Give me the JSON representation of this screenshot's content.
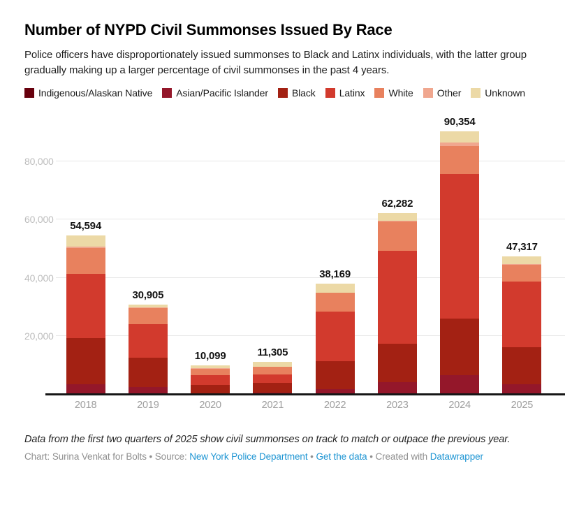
{
  "header": {
    "title": "Number of NYPD Civil Summonses Issued By Race",
    "subtitle": "Police officers have disproportionately issued summonses to Black and Latinx individuals, with the latter group gradually making up a larger percentage of civil summonses in the past 4 years."
  },
  "colors": {
    "indigenous": "#67000d",
    "asian": "#94172a",
    "black": "#a32113",
    "latinx": "#d23a2d",
    "white": "#e8815e",
    "other": "#f0a78f",
    "unknown": "#ecd9a6",
    "link_blue": "#1e95d3",
    "gridline": "#e6e6e6",
    "axis": "#161616"
  },
  "chart_data": {
    "type": "bar",
    "stacked": true,
    "title": "Number of NYPD Civil Summonses Issued By Race",
    "categories": [
      "2018",
      "2019",
      "2020",
      "2021",
      "2022",
      "2023",
      "2024",
      "2025"
    ],
    "totals": [
      54594,
      30905,
      10099,
      11305,
      38169,
      62282,
      90354,
      47317
    ],
    "total_labels": [
      "54,594",
      "30,905",
      "10,099",
      "11,305",
      "38,169",
      "62,282",
      "90,354",
      "47,317"
    ],
    "series": [
      {
        "name": "Indigenous/Alaskan Native",
        "color": "#67000d",
        "values": [
          144,
          55,
          49,
          55,
          69,
          82,
          150,
          67
        ]
      },
      {
        "name": "Asian/Pacific Islander",
        "color": "#94172a",
        "values": [
          3300,
          2500,
          350,
          700,
          1900,
          4300,
          6500,
          3600
        ]
      },
      {
        "name": "Black",
        "color": "#a32113",
        "values": [
          16000,
          10100,
          2900,
          3300,
          9400,
          13000,
          19500,
          12500
        ]
      },
      {
        "name": "Latinx",
        "color": "#d23a2d",
        "values": [
          21850,
          11600,
          3300,
          2900,
          17000,
          32000,
          49504,
          22700
        ]
      },
      {
        "name": "White",
        "color": "#e8815e",
        "values": [
          9000,
          5500,
          2300,
          2600,
          6500,
          10100,
          9500,
          5700
        ]
      },
      {
        "name": "Other",
        "color": "#f0a78f",
        "values": [
          500,
          150,
          100,
          100,
          100,
          150,
          1200,
          150
        ]
      },
      {
        "name": "Unknown",
        "color": "#ecd9a6",
        "values": [
          3800,
          1000,
          1100,
          1650,
          3200,
          2650,
          4000,
          2600
        ]
      }
    ],
    "yticks": [
      {
        "value": 20000,
        "label": "20,000"
      },
      {
        "value": 40000,
        "label": "40,000"
      },
      {
        "value": 60000,
        "label": "60,000"
      },
      {
        "value": 80000,
        "label": "80,000"
      }
    ],
    "ylim": [
      0,
      95000
    ],
    "grid": "horizontal",
    "legend_position": "top",
    "xlabel": "",
    "ylabel": ""
  },
  "footer": {
    "note": "Data from the first two quarters of 2025 show civil summonses on track to match or outpace the previous year.",
    "credit_prefix": "Chart: Surina Venkat for Bolts • Source: ",
    "source_link": "New York Police Department",
    "separator1": " • ",
    "get_data_link": "Get the data",
    "separator2": " • Created with ",
    "created_with_link": "Datawrapper"
  }
}
